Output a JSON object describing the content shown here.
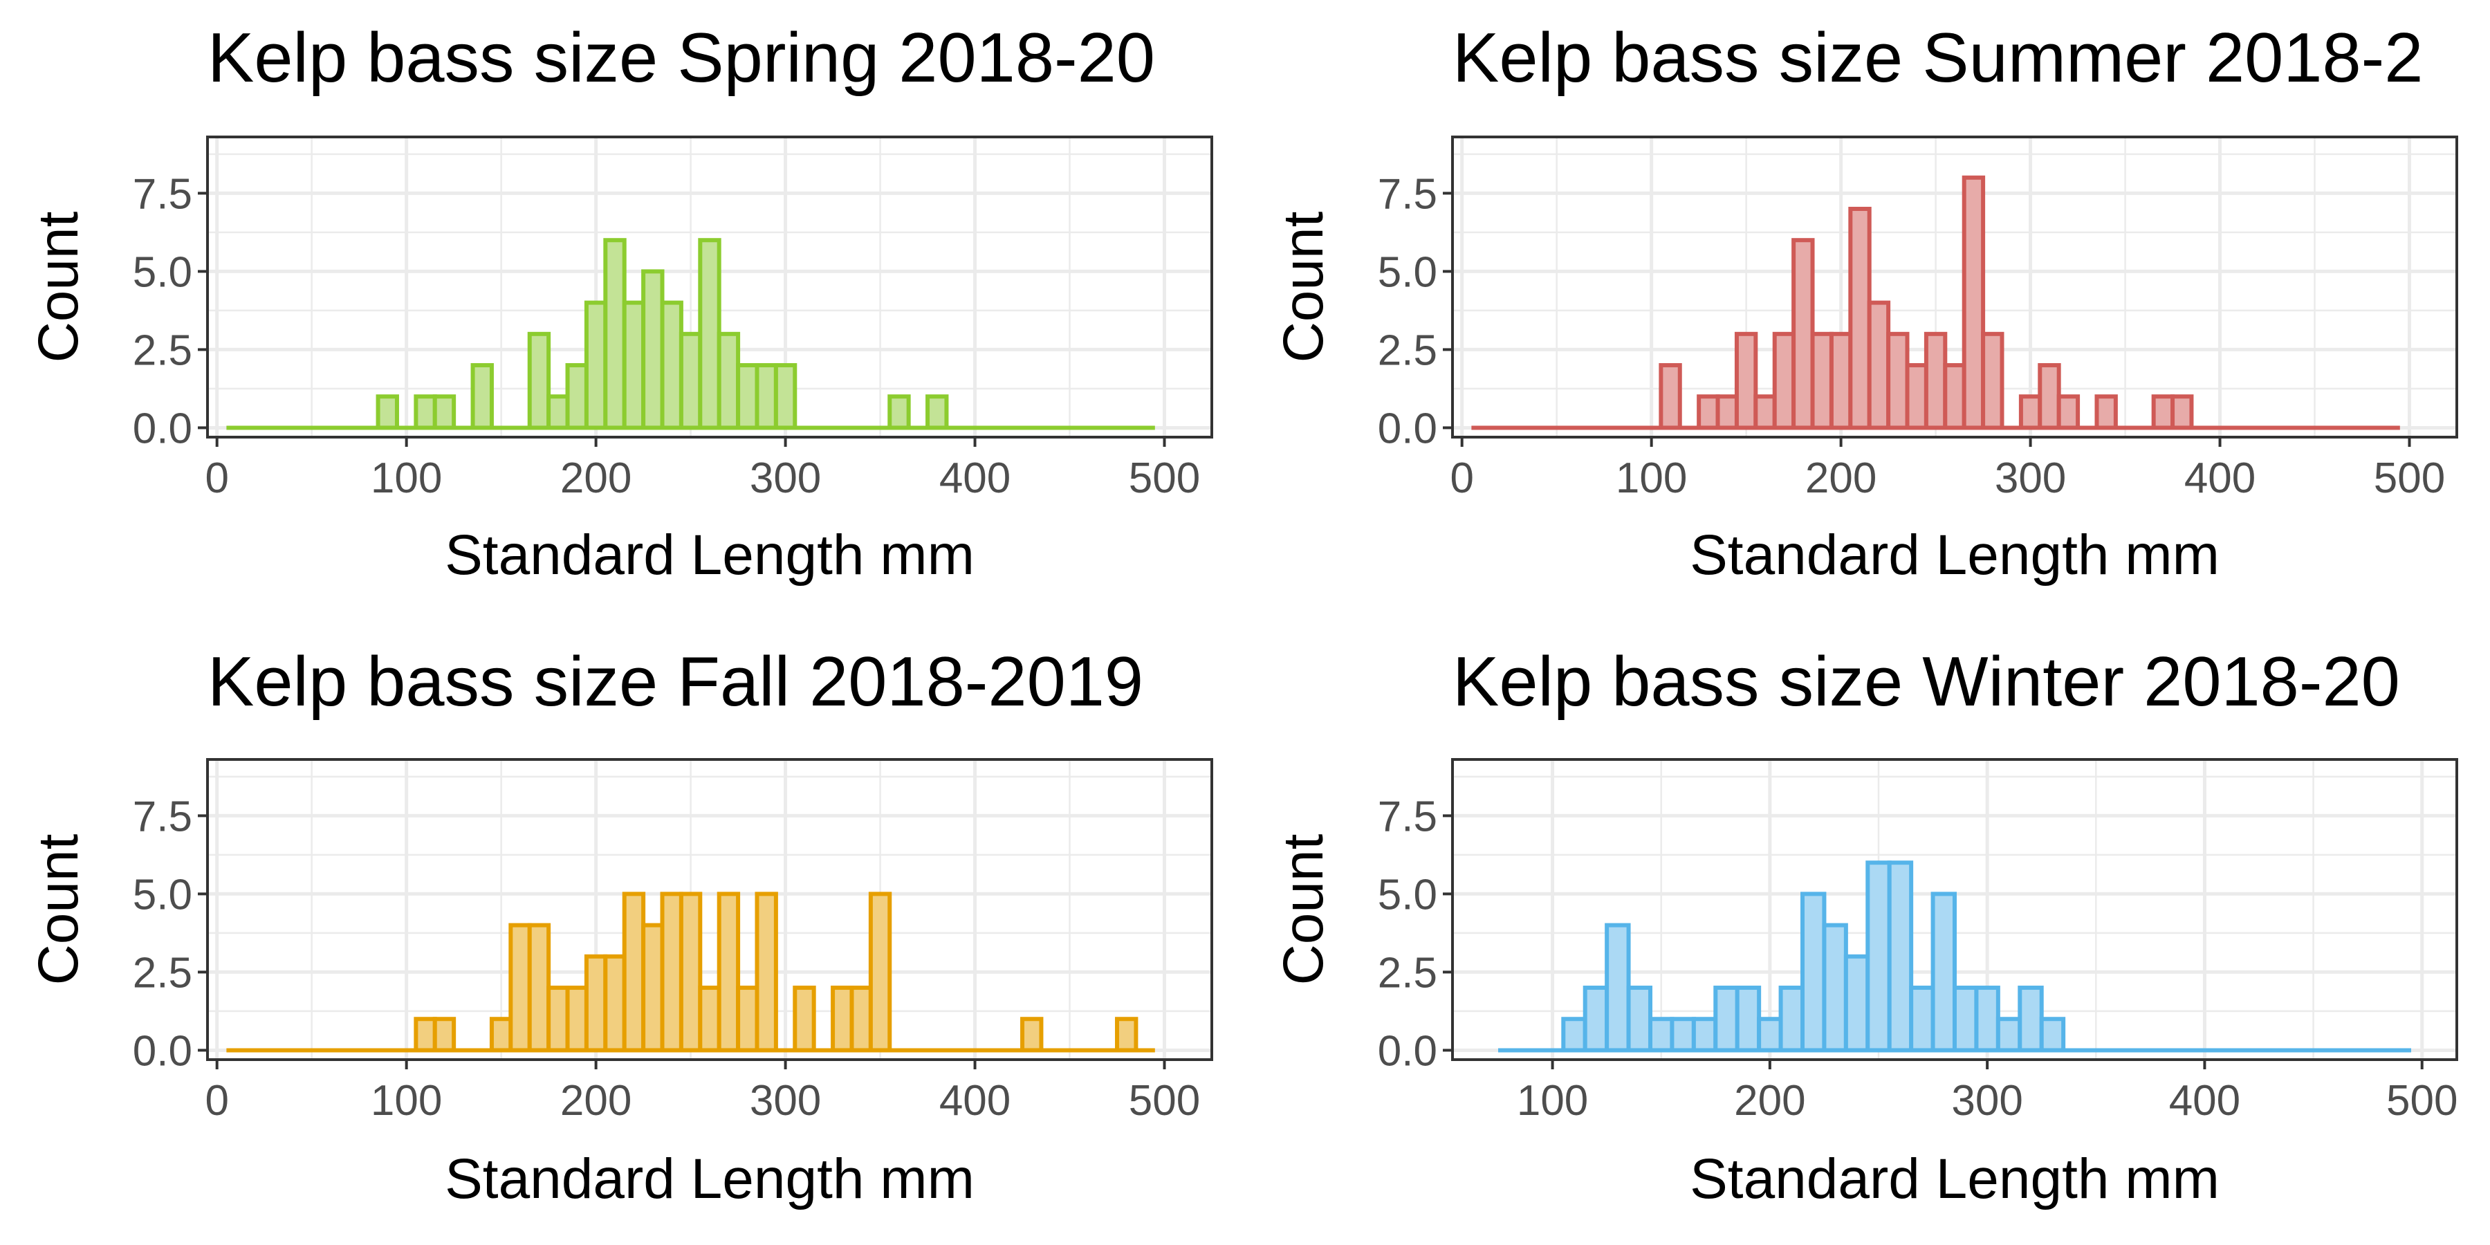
{
  "chart_data": [
    {
      "type": "bar",
      "title": "Kelp bass size Spring 2018-20",
      "xlabel": "Standard Length mm",
      "ylabel": "Count",
      "xlim": [
        -5,
        525
      ],
      "ylim": [
        -0.3,
        9.3
      ],
      "xticks": [
        0,
        100,
        200,
        300,
        400,
        500
      ],
      "yticks": [
        0.0,
        2.5,
        5.0,
        7.5
      ],
      "ytick_labels": [
        "0.0",
        "2.5",
        "5.0",
        "7.5"
      ],
      "baseline_range": [
        5,
        495
      ],
      "bin_width": 10,
      "color": "#8ccc2f",
      "fill": "#c3e396",
      "bars": [
        {
          "x": 90,
          "count": 1
        },
        {
          "x": 110,
          "count": 1
        },
        {
          "x": 120,
          "count": 1
        },
        {
          "x": 140,
          "count": 2
        },
        {
          "x": 170,
          "count": 3
        },
        {
          "x": 180,
          "count": 1
        },
        {
          "x": 190,
          "count": 2
        },
        {
          "x": 200,
          "count": 4
        },
        {
          "x": 210,
          "count": 6
        },
        {
          "x": 220,
          "count": 4
        },
        {
          "x": 230,
          "count": 5
        },
        {
          "x": 240,
          "count": 4
        },
        {
          "x": 250,
          "count": 3
        },
        {
          "x": 260,
          "count": 6
        },
        {
          "x": 270,
          "count": 3
        },
        {
          "x": 280,
          "count": 2
        },
        {
          "x": 290,
          "count": 2
        },
        {
          "x": 300,
          "count": 2
        },
        {
          "x": 360,
          "count": 1
        },
        {
          "x": 380,
          "count": 1
        }
      ]
    },
    {
      "type": "bar",
      "title": "Kelp bass size Summer 2018-2",
      "xlabel": "Standard Length mm",
      "ylabel": "Count",
      "xlim": [
        -5,
        525
      ],
      "ylim": [
        -0.3,
        9.3
      ],
      "xticks": [
        0,
        100,
        200,
        300,
        400,
        500
      ],
      "yticks": [
        0.0,
        2.5,
        5.0,
        7.5
      ],
      "ytick_labels": [
        "0.0",
        "2.5",
        "5.0",
        "7.5"
      ],
      "baseline_range": [
        5,
        495
      ],
      "bin_width": 10,
      "color": "#cf5a56",
      "fill": "#e7aba9",
      "bars": [
        {
          "x": 110,
          "count": 2
        },
        {
          "x": 130,
          "count": 1
        },
        {
          "x": 140,
          "count": 1
        },
        {
          "x": 150,
          "count": 3
        },
        {
          "x": 160,
          "count": 1
        },
        {
          "x": 170,
          "count": 3
        },
        {
          "x": 180,
          "count": 6
        },
        {
          "x": 190,
          "count": 3
        },
        {
          "x": 200,
          "count": 3
        },
        {
          "x": 210,
          "count": 7
        },
        {
          "x": 220,
          "count": 4
        },
        {
          "x": 230,
          "count": 3
        },
        {
          "x": 240,
          "count": 2
        },
        {
          "x": 250,
          "count": 3
        },
        {
          "x": 260,
          "count": 2
        },
        {
          "x": 270,
          "count": 8
        },
        {
          "x": 280,
          "count": 3
        },
        {
          "x": 300,
          "count": 1
        },
        {
          "x": 310,
          "count": 2
        },
        {
          "x": 320,
          "count": 1
        },
        {
          "x": 340,
          "count": 1
        },
        {
          "x": 370,
          "count": 1
        },
        {
          "x": 380,
          "count": 1
        }
      ]
    },
    {
      "type": "bar",
      "title": "Kelp bass size Fall 2018-2019",
      "xlabel": "Standard Length mm",
      "ylabel": "Count",
      "xlim": [
        -5,
        525
      ],
      "ylim": [
        -0.3,
        9.3
      ],
      "xticks": [
        0,
        100,
        200,
        300,
        400,
        500
      ],
      "yticks": [
        0.0,
        2.5,
        5.0,
        7.5
      ],
      "ytick_labels": [
        "0.0",
        "2.5",
        "5.0",
        "7.5"
      ],
      "baseline_range": [
        5,
        495
      ],
      "bin_width": 10,
      "color": "#e69f00",
      "fill": "#f2cf7f",
      "bars": [
        {
          "x": 110,
          "count": 1
        },
        {
          "x": 120,
          "count": 1
        },
        {
          "x": 150,
          "count": 1
        },
        {
          "x": 160,
          "count": 4
        },
        {
          "x": 170,
          "count": 4
        },
        {
          "x": 180,
          "count": 2
        },
        {
          "x": 190,
          "count": 2
        },
        {
          "x": 200,
          "count": 3
        },
        {
          "x": 210,
          "count": 3
        },
        {
          "x": 220,
          "count": 5
        },
        {
          "x": 230,
          "count": 4
        },
        {
          "x": 240,
          "count": 5
        },
        {
          "x": 250,
          "count": 5
        },
        {
          "x": 260,
          "count": 2
        },
        {
          "x": 270,
          "count": 5
        },
        {
          "x": 280,
          "count": 2
        },
        {
          "x": 290,
          "count": 5
        },
        {
          "x": 310,
          "count": 2
        },
        {
          "x": 330,
          "count": 2
        },
        {
          "x": 340,
          "count": 2
        },
        {
          "x": 350,
          "count": 5
        },
        {
          "x": 430,
          "count": 1
        },
        {
          "x": 480,
          "count": 1
        }
      ]
    },
    {
      "type": "bar",
      "title": "Kelp bass size Winter 2018-20",
      "xlabel": "Standard Length mm",
      "ylabel": "Count",
      "xlim": [
        54,
        516
      ],
      "ylim": [
        -0.3,
        9.3
      ],
      "xticks": [
        100,
        200,
        300,
        400,
        500
      ],
      "yticks": [
        0.0,
        2.5,
        5.0,
        7.5
      ],
      "ytick_labels": [
        "0.0",
        "2.5",
        "5.0",
        "7.5"
      ],
      "baseline_range": [
        75,
        495
      ],
      "bin_width": 10,
      "color": "#56b4e9",
      "fill": "#abd9f4",
      "bars": [
        {
          "x": 110,
          "count": 1
        },
        {
          "x": 120,
          "count": 2
        },
        {
          "x": 130,
          "count": 4
        },
        {
          "x": 140,
          "count": 2
        },
        {
          "x": 150,
          "count": 1
        },
        {
          "x": 160,
          "count": 1
        },
        {
          "x": 170,
          "count": 1
        },
        {
          "x": 180,
          "count": 2
        },
        {
          "x": 190,
          "count": 2
        },
        {
          "x": 200,
          "count": 1
        },
        {
          "x": 210,
          "count": 2
        },
        {
          "x": 220,
          "count": 5
        },
        {
          "x": 230,
          "count": 4
        },
        {
          "x": 240,
          "count": 3
        },
        {
          "x": 250,
          "count": 6
        },
        {
          "x": 260,
          "count": 6
        },
        {
          "x": 270,
          "count": 2
        },
        {
          "x": 280,
          "count": 5
        },
        {
          "x": 290,
          "count": 2
        },
        {
          "x": 300,
          "count": 2
        },
        {
          "x": 310,
          "count": 1
        },
        {
          "x": 320,
          "count": 2
        },
        {
          "x": 330,
          "count": 1
        }
      ]
    }
  ]
}
